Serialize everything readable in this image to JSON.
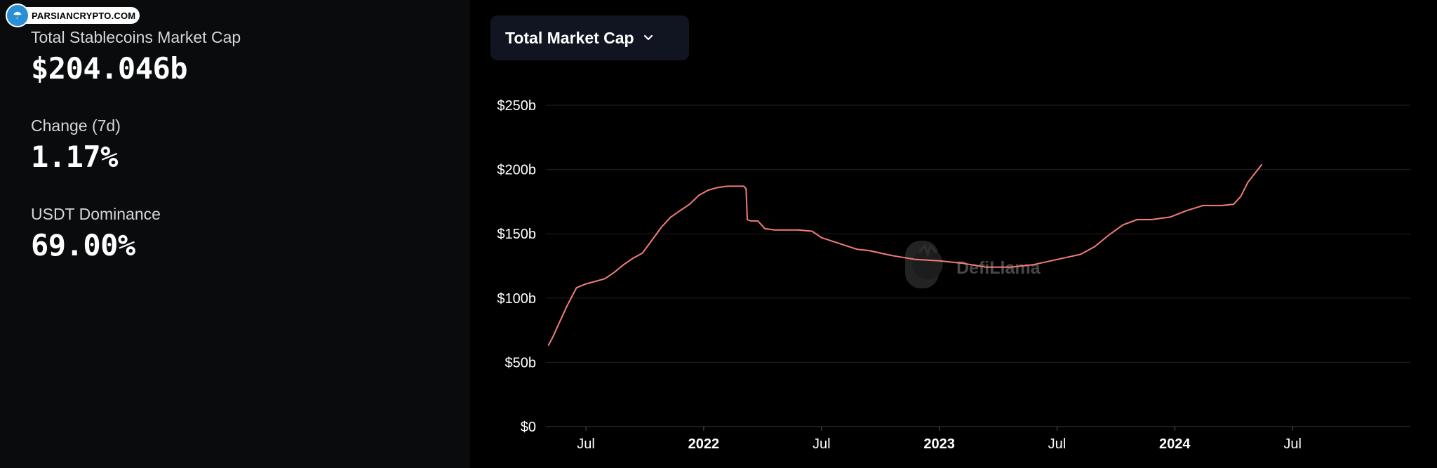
{
  "watermark": {
    "text": "PARSIANCRYPTO.COM"
  },
  "stats": [
    {
      "label": "Total Stablecoins Market Cap",
      "value": "$204.046b"
    },
    {
      "label": "Change (7d)",
      "value": "1.17%"
    },
    {
      "label": "USDT Dominance",
      "value": "69.00%"
    }
  ],
  "dropdown": {
    "label": "Total Market Cap"
  },
  "chart_watermark": {
    "text": "DefiLlama"
  },
  "colors": {
    "line": "#f47c7c",
    "grid": "#222222",
    "panel_left": "#0a0b0d",
    "dropdown_bg": "#111521"
  },
  "chart_data": {
    "type": "line",
    "title": "Total Market Cap",
    "xlabel": "",
    "ylabel": "",
    "ylim": [
      0,
      250
    ],
    "xlim": [
      2021.33,
      2025.0
    ],
    "yticks": [
      {
        "value": 0,
        "label": "$0"
      },
      {
        "value": 50,
        "label": "$50b"
      },
      {
        "value": 100,
        "label": "$100b"
      },
      {
        "value": 150,
        "label": "$150b"
      },
      {
        "value": 200,
        "label": "$200b"
      },
      {
        "value": 250,
        "label": "$250b"
      }
    ],
    "xticks": [
      {
        "value": 2021.5,
        "label": "Jul",
        "major": false
      },
      {
        "value": 2022.0,
        "label": "2022",
        "major": true
      },
      {
        "value": 2022.5,
        "label": "Jul",
        "major": false
      },
      {
        "value": 2023.0,
        "label": "2023",
        "major": true
      },
      {
        "value": 2023.5,
        "label": "Jul",
        "major": false
      },
      {
        "value": 2024.0,
        "label": "2024",
        "major": true
      },
      {
        "value": 2024.5,
        "label": "Jul",
        "major": false
      }
    ],
    "series": [
      {
        "name": "Total Market Cap",
        "points": [
          [
            2021.34,
            63
          ],
          [
            2021.36,
            70
          ],
          [
            2021.38,
            78
          ],
          [
            2021.4,
            86
          ],
          [
            2021.42,
            94
          ],
          [
            2021.44,
            101
          ],
          [
            2021.46,
            108
          ],
          [
            2021.5,
            111
          ],
          [
            2021.54,
            113
          ],
          [
            2021.58,
            115
          ],
          [
            2021.62,
            120
          ],
          [
            2021.66,
            126
          ],
          [
            2021.7,
            131
          ],
          [
            2021.74,
            135
          ],
          [
            2021.78,
            145
          ],
          [
            2021.82,
            155
          ],
          [
            2021.86,
            163
          ],
          [
            2021.9,
            168
          ],
          [
            2021.94,
            173
          ],
          [
            2021.98,
            180
          ],
          [
            2022.02,
            184
          ],
          [
            2022.06,
            186
          ],
          [
            2022.1,
            187
          ],
          [
            2022.14,
            187
          ],
          [
            2022.17,
            187
          ],
          [
            2022.18,
            185
          ],
          [
            2022.185,
            161
          ],
          [
            2022.2,
            160
          ],
          [
            2022.23,
            160
          ],
          [
            2022.26,
            154
          ],
          [
            2022.3,
            153
          ],
          [
            2022.4,
            153
          ],
          [
            2022.46,
            152
          ],
          [
            2022.5,
            147
          ],
          [
            2022.55,
            144
          ],
          [
            2022.6,
            141
          ],
          [
            2022.65,
            138
          ],
          [
            2022.7,
            137
          ],
          [
            2022.8,
            133
          ],
          [
            2022.9,
            130
          ],
          [
            2023.0,
            129
          ],
          [
            2023.1,
            127
          ],
          [
            2023.2,
            124
          ],
          [
            2023.3,
            124
          ],
          [
            2023.4,
            126
          ],
          [
            2023.5,
            130
          ],
          [
            2023.6,
            134
          ],
          [
            2023.66,
            140
          ],
          [
            2023.72,
            149
          ],
          [
            2023.78,
            157
          ],
          [
            2023.84,
            161
          ],
          [
            2023.9,
            161
          ],
          [
            2023.98,
            163
          ],
          [
            2024.05,
            168
          ],
          [
            2024.12,
            172
          ],
          [
            2024.2,
            172
          ],
          [
            2024.25,
            173
          ],
          [
            2024.28,
            179
          ],
          [
            2024.31,
            190
          ],
          [
            2024.34,
            197
          ],
          [
            2024.37,
            204
          ]
        ]
      }
    ]
  }
}
